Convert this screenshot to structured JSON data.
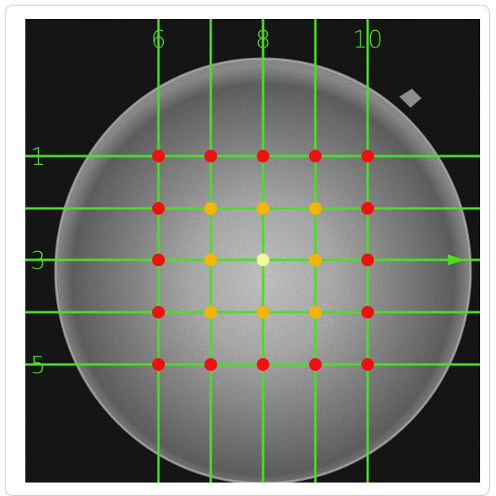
{
  "image": {
    "type": "grayscale circular specimen micrograph with green measurement grid"
  },
  "grid": {
    "line_color": "#4ae021",
    "vertical_labels": [
      "6",
      "8",
      "10"
    ],
    "horizontal_labels": [
      "1",
      "3",
      "5"
    ],
    "arrow_on_row": "3"
  },
  "markers": {
    "colors": {
      "red": "#ee1111",
      "orange": "#f5b400",
      "yellow": "#f6f5a0"
    },
    "rows": [
      [
        "red",
        "red",
        "red",
        "red",
        "red"
      ],
      [
        "red",
        "orange",
        "orange",
        "orange",
        "red"
      ],
      [
        "red",
        "orange",
        "yellow",
        "orange",
        "red"
      ],
      [
        "red",
        "orange",
        "orange",
        "orange",
        "red"
      ],
      [
        "red",
        "red",
        "red",
        "red",
        "red"
      ]
    ]
  }
}
